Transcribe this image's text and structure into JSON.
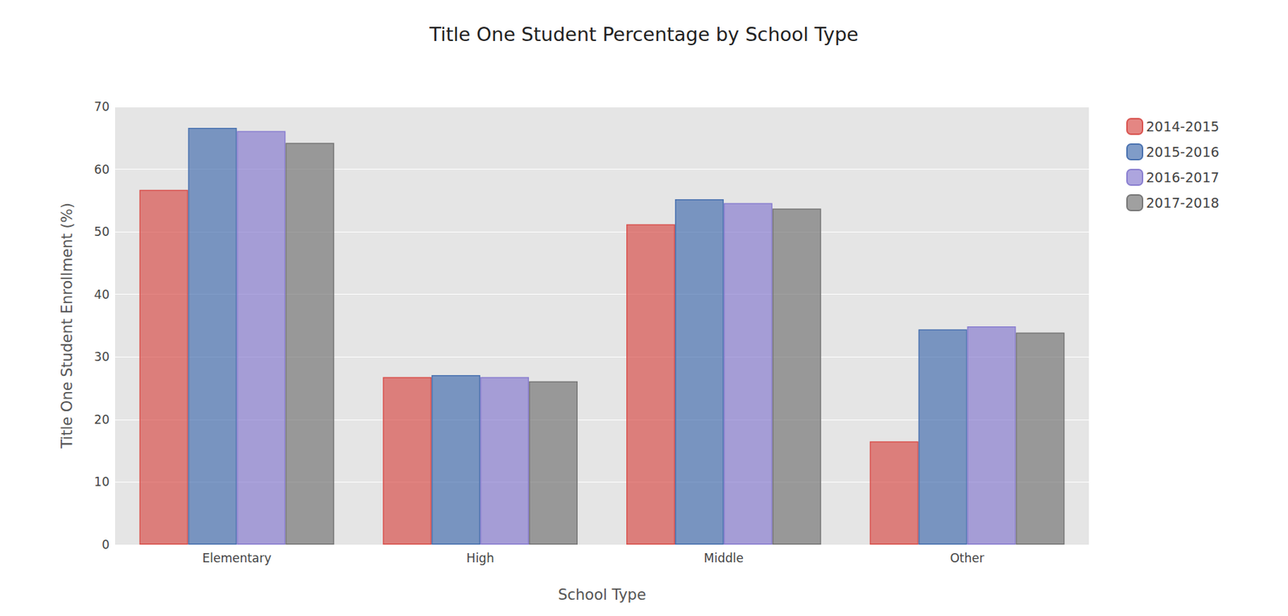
{
  "chart_data": {
    "type": "bar",
    "title": "Title One Student Percentage by School Type",
    "x_label": "School Type",
    "y_label": "Title One Student Enrollment (%)",
    "categories": [
      "Elementary",
      "High",
      "Middle",
      "Other"
    ],
    "series": [
      {
        "name": "2014-2015",
        "color": "#d9534f",
        "values": [
          56.7,
          26.8,
          51.2,
          16.5
        ]
      },
      {
        "name": "2015-2016",
        "color": "#4a72b0",
        "values": [
          66.6,
          27.1,
          55.2,
          34.4
        ]
      },
      {
        "name": "2016-2017",
        "color": "#8a7fd0",
        "values": [
          66.1,
          26.8,
          54.6,
          34.9
        ]
      },
      {
        "name": "2017-2018",
        "color": "#787878",
        "values": [
          64.2,
          26.1,
          53.7,
          33.9
        ]
      }
    ],
    "ylim": [
      0,
      70
    ],
    "yticks": [
      0,
      10,
      20,
      30,
      40,
      50,
      60,
      70
    ],
    "grid": true,
    "legend": "top-right"
  }
}
